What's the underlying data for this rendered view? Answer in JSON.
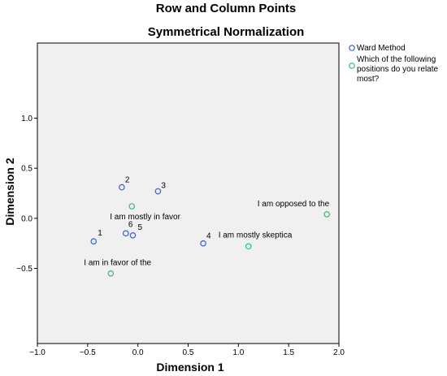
{
  "chart_data": {
    "type": "scatter",
    "title": "Row and Column Points",
    "subtitle": "Symmetrical Normalization",
    "xlabel": "Dimension 1",
    "ylabel": "Dimension 2",
    "xlim": [
      -1.0,
      2.0
    ],
    "ylim": [
      -1.25,
      1.75
    ],
    "xticks": [
      -1.0,
      -0.5,
      0.0,
      0.5,
      1.0,
      1.5,
      2.0
    ],
    "xtick_labels": [
      "−1.0",
      "−0.5",
      "0.0",
      "0.5",
      "1.0",
      "1.5",
      "2.0"
    ],
    "yticks": [
      -0.5,
      0.0,
      0.5,
      1.0
    ],
    "ytick_labels": [
      "−0.5",
      "0.0",
      "0.5",
      "1.0"
    ],
    "grid": false,
    "background": "#f0f0f0",
    "legend_position": "right",
    "series": [
      {
        "name": "Ward Method",
        "color": "#3a5fcd",
        "marker": "open-circle",
        "points": [
          {
            "label": "1",
            "x": -0.44,
            "y": -0.23
          },
          {
            "label": "2",
            "x": -0.16,
            "y": 0.31
          },
          {
            "label": "3",
            "x": 0.2,
            "y": 0.27
          },
          {
            "label": "4",
            "x": 0.65,
            "y": -0.25
          },
          {
            "label": "5",
            "x": -0.05,
            "y": -0.17
          },
          {
            "label": "6",
            "x": -0.12,
            "y": -0.15
          }
        ]
      },
      {
        "name_lines": [
          "Which of the following",
          "positions do you relate",
          "most?"
        ],
        "color": "#2ebf6e",
        "marker": "open-circle",
        "points": [
          {
            "label": "I am mostly in favor",
            "x": -0.06,
            "y": 0.12
          },
          {
            "label": "I am opposed to the",
            "x": 1.88,
            "y": 0.04
          },
          {
            "label": "I am mostly skeptica",
            "x": 1.1,
            "y": -0.28
          },
          {
            "label": "I am in favor of the",
            "x": -0.27,
            "y": -0.55
          }
        ]
      }
    ]
  }
}
